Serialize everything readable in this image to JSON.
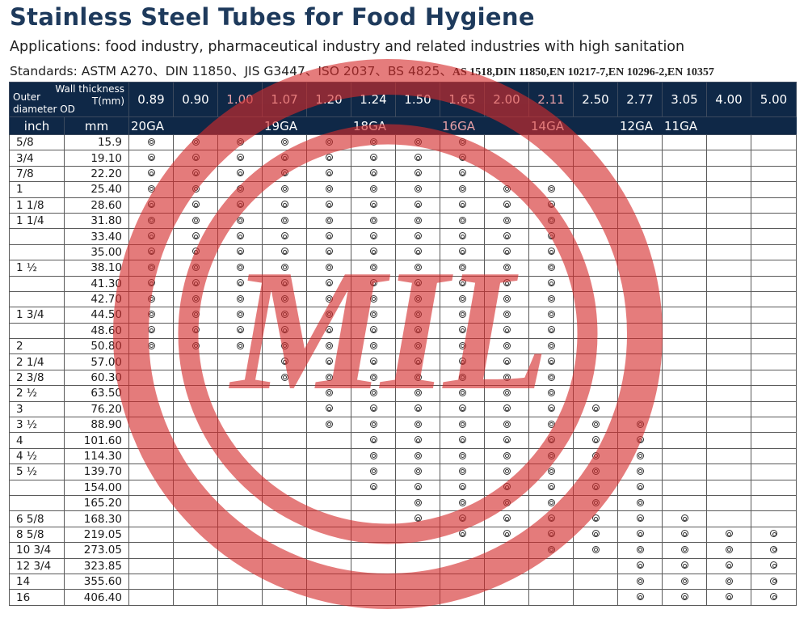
{
  "title": "Stainless Steel Tubes for Food Hygiene",
  "applications": "Applications: food industry, pharmaceutical industry and related industries with high sanitation",
  "standards_main": "Standards: ASTM A270、DIN 11850、JIS G3447、ISO 2037、BS 4825、",
  "standards_tail": "AS 1518,DIN 11850,EN 10217-7,EN 10296-2,EN 10357",
  "watermark_text": "MIL",
  "header": {
    "wall_thickness_label": "Wall thickness",
    "wall_thickness_unit": "T(mm)",
    "outer_label": "Outer",
    "od_label": "diameter OD",
    "unit_inch": "inch",
    "unit_mm": "mm"
  },
  "thickness_columns": [
    "0.89",
    "0.90",
    "1.00",
    "1.07",
    "1.20",
    "1.24",
    "1.50",
    "1.65",
    "2.00",
    "2.11",
    "2.50",
    "2.77",
    "3.05",
    "4.00",
    "5.00"
  ],
  "gauges": [
    {
      "label": "20GA",
      "span": 2
    },
    {
      "label": "",
      "span": 1
    },
    {
      "label": "19GA",
      "span": 2
    },
    {
      "label": "18GA",
      "span": 2
    },
    {
      "label": "16GA",
      "span": 2
    },
    {
      "label": "14GA",
      "span": 2
    },
    {
      "label": "12GA",
      "span": 1
    },
    {
      "label": "11GA",
      "span": 1
    },
    {
      "label": "",
      "span": 2
    }
  ],
  "rows": [
    {
      "inch": "5/8",
      "mm": "15.9",
      "marks": [
        1,
        1,
        1,
        1,
        1,
        1,
        1,
        1,
        0,
        0,
        0,
        0,
        0,
        0,
        0
      ]
    },
    {
      "inch": "3/4",
      "mm": "19.10",
      "marks": [
        1,
        1,
        1,
        1,
        1,
        1,
        1,
        1,
        0,
        0,
        0,
        0,
        0,
        0,
        0
      ]
    },
    {
      "inch": "7/8",
      "mm": "22.20",
      "marks": [
        1,
        1,
        1,
        1,
        1,
        1,
        1,
        1,
        0,
        0,
        0,
        0,
        0,
        0,
        0
      ]
    },
    {
      "inch": "1",
      "mm": "25.40",
      "marks": [
        1,
        1,
        1,
        1,
        1,
        1,
        1,
        1,
        1,
        1,
        0,
        0,
        0,
        0,
        0
      ]
    },
    {
      "inch": "1 1/8",
      "mm": "28.60",
      "marks": [
        1,
        1,
        1,
        1,
        1,
        1,
        1,
        1,
        1,
        1,
        0,
        0,
        0,
        0,
        0
      ]
    },
    {
      "inch": "1 1/4",
      "mm": "31.80",
      "marks": [
        1,
        1,
        1,
        1,
        1,
        1,
        1,
        1,
        1,
        1,
        0,
        0,
        0,
        0,
        0
      ]
    },
    {
      "inch": "",
      "mm": "33.40",
      "marks": [
        1,
        1,
        1,
        1,
        1,
        1,
        1,
        1,
        1,
        1,
        0,
        0,
        0,
        0,
        0
      ]
    },
    {
      "inch": "",
      "mm": "35.00",
      "marks": [
        1,
        1,
        1,
        1,
        1,
        1,
        1,
        1,
        1,
        1,
        0,
        0,
        0,
        0,
        0
      ]
    },
    {
      "inch": "1 ½",
      "mm": "38.10",
      "marks": [
        1,
        1,
        1,
        1,
        1,
        1,
        1,
        1,
        1,
        1,
        0,
        0,
        0,
        0,
        0
      ]
    },
    {
      "inch": "",
      "mm": "41.30",
      "marks": [
        1,
        1,
        1,
        1,
        1,
        1,
        1,
        1,
        1,
        1,
        0,
        0,
        0,
        0,
        0
      ]
    },
    {
      "inch": "",
      "mm": "42.70",
      "marks": [
        1,
        1,
        1,
        1,
        1,
        1,
        1,
        1,
        1,
        1,
        0,
        0,
        0,
        0,
        0
      ]
    },
    {
      "inch": "1 3/4",
      "mm": "44.50",
      "marks": [
        1,
        1,
        1,
        1,
        1,
        1,
        1,
        1,
        1,
        1,
        0,
        0,
        0,
        0,
        0
      ]
    },
    {
      "inch": "",
      "mm": "48.60",
      "marks": [
        1,
        1,
        1,
        1,
        1,
        1,
        1,
        1,
        1,
        1,
        0,
        0,
        0,
        0,
        0
      ]
    },
    {
      "inch": "2",
      "mm": "50.80",
      "marks": [
        1,
        1,
        1,
        1,
        1,
        1,
        1,
        1,
        1,
        1,
        0,
        0,
        0,
        0,
        0
      ]
    },
    {
      "inch": "2 1/4",
      "mm": "57.00",
      "marks": [
        0,
        0,
        0,
        1,
        1,
        1,
        1,
        1,
        1,
        1,
        0,
        0,
        0,
        0,
        0
      ]
    },
    {
      "inch": "2 3/8",
      "mm": "60.30",
      "marks": [
        0,
        0,
        0,
        1,
        1,
        1,
        1,
        1,
        1,
        1,
        0,
        0,
        0,
        0,
        0
      ]
    },
    {
      "inch": "2 ½",
      "mm": "63.50",
      "marks": [
        0,
        0,
        0,
        0,
        1,
        1,
        1,
        1,
        1,
        1,
        0,
        0,
        0,
        0,
        0
      ]
    },
    {
      "inch": "3",
      "mm": "76.20",
      "marks": [
        0,
        0,
        0,
        0,
        1,
        1,
        1,
        1,
        1,
        1,
        1,
        0,
        0,
        0,
        0
      ]
    },
    {
      "inch": "3 ½",
      "mm": "88.90",
      "marks": [
        0,
        0,
        0,
        0,
        1,
        1,
        1,
        1,
        1,
        1,
        1,
        1,
        0,
        0,
        0
      ]
    },
    {
      "inch": "4",
      "mm": "101.60",
      "marks": [
        0,
        0,
        0,
        0,
        0,
        1,
        1,
        1,
        1,
        1,
        1,
        1,
        0,
        0,
        0
      ]
    },
    {
      "inch": "4 ½",
      "mm": "114.30",
      "marks": [
        0,
        0,
        0,
        0,
        0,
        1,
        1,
        1,
        1,
        1,
        1,
        1,
        0,
        0,
        0
      ]
    },
    {
      "inch": "5 ½",
      "mm": "139.70",
      "marks": [
        0,
        0,
        0,
        0,
        0,
        1,
        1,
        1,
        1,
        1,
        1,
        1,
        0,
        0,
        0
      ]
    },
    {
      "inch": "",
      "mm": "154.00",
      "marks": [
        0,
        0,
        0,
        0,
        0,
        1,
        1,
        1,
        1,
        1,
        1,
        1,
        0,
        0,
        0
      ]
    },
    {
      "inch": "",
      "mm": "165.20",
      "marks": [
        0,
        0,
        0,
        0,
        0,
        0,
        1,
        1,
        1,
        1,
        1,
        1,
        0,
        0,
        0
      ]
    },
    {
      "inch": "6 5/8",
      "mm": "168.30",
      "marks": [
        0,
        0,
        0,
        0,
        0,
        0,
        1,
        1,
        1,
        1,
        1,
        1,
        1,
        0,
        0
      ]
    },
    {
      "inch": "8 5/8",
      "mm": "219.05",
      "marks": [
        0,
        0,
        0,
        0,
        0,
        0,
        0,
        1,
        1,
        1,
        1,
        1,
        1,
        1,
        1
      ]
    },
    {
      "inch": "10 3/4",
      "mm": "273.05",
      "marks": [
        0,
        0,
        0,
        0,
        0,
        0,
        0,
        0,
        0,
        1,
        1,
        1,
        1,
        1,
        1
      ]
    },
    {
      "inch": "12 3/4",
      "mm": "323.85",
      "marks": [
        0,
        0,
        0,
        0,
        0,
        0,
        0,
        0,
        0,
        0,
        0,
        1,
        1,
        1,
        1
      ]
    },
    {
      "inch": "14",
      "mm": "355.60",
      "marks": [
        0,
        0,
        0,
        0,
        0,
        0,
        0,
        0,
        0,
        0,
        0,
        1,
        1,
        1,
        1
      ]
    },
    {
      "inch": "16",
      "mm": "406.40",
      "marks": [
        0,
        0,
        0,
        0,
        0,
        0,
        0,
        0,
        0,
        0,
        0,
        1,
        1,
        1,
        1
      ]
    }
  ],
  "colors": {
    "header_bg": "#0f2847",
    "title": "#1e3a5c",
    "watermark": "#d52b2b",
    "faded_header_text": "#e7a0a6"
  },
  "icons": {
    "mark": "double-circle-icon"
  }
}
